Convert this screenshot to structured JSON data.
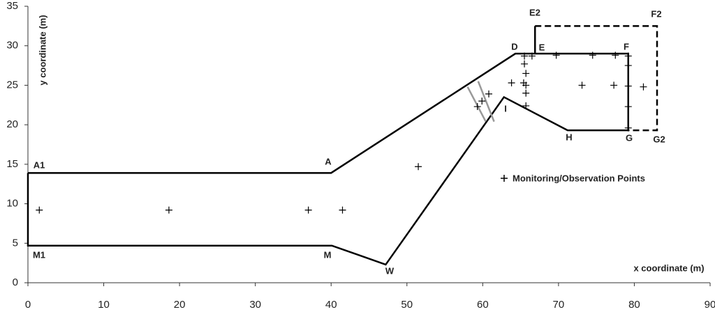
{
  "chart_data": {
    "type": "scatter",
    "x_label": "x coordinate (m)",
    "y_label": "y coordinate (m)",
    "xlim": [
      0,
      90
    ],
    "ylim": [
      0,
      35
    ],
    "xticks": [
      0,
      10,
      20,
      30,
      40,
      50,
      60,
      70,
      80,
      90
    ],
    "yticks": [
      0,
      5,
      10,
      15,
      20,
      25,
      30,
      35
    ],
    "lines": [
      {
        "style": "solid",
        "width": 2.5,
        "color": "#000000",
        "x": [
          0,
          40,
          64.3,
          79.2,
          79.2,
          71.2,
          62.8,
          47.2,
          40.1,
          0,
          0
        ],
        "y": [
          13.9,
          13.9,
          29.0,
          29.0,
          19.3,
          19.3,
          23.5,
          2.3,
          4.7,
          4.7,
          13.9
        ]
      },
      {
        "style": "solid",
        "width": 2.5,
        "color": "#000000",
        "x": [
          66.9,
          66.9
        ],
        "y": [
          32.5,
          29.0
        ]
      },
      {
        "style": "dashed",
        "width": 2.5,
        "color": "#000000",
        "x": [
          66.9,
          83.0,
          83.0,
          79.2
        ],
        "y": [
          32.5,
          32.5,
          19.3,
          19.3
        ]
      },
      {
        "style": "solid",
        "width": 2.5,
        "color": "#999999",
        "x": [
          58.0,
          60.4
        ],
        "y": [
          24.8,
          20.4
        ]
      },
      {
        "style": "solid",
        "width": 2.5,
        "color": "#999999",
        "x": [
          59.4,
          61.5
        ],
        "y": [
          25.5,
          20.4
        ]
      }
    ],
    "series": [
      {
        "name": "Monitoring/Observation Points",
        "color": "#000000",
        "marker": "+",
        "x": [
          1.5,
          18.6,
          37.0,
          41.5,
          51.5,
          59.3,
          59.9,
          60.8,
          63.8,
          65.4,
          65.7,
          65.7,
          65.7,
          65.7,
          65.5,
          65.5,
          66.5,
          69.7,
          74.5,
          77.5,
          73.1,
          77.3,
          79.2,
          79.2,
          79.2,
          79.2,
          79.2,
          81.2
        ],
        "y": [
          9.2,
          9.2,
          9.2,
          9.2,
          14.7,
          22.3,
          23.0,
          23.9,
          25.3,
          25.3,
          24.0,
          22.4,
          25.0,
          26.5,
          27.7,
          28.7,
          28.7,
          28.8,
          28.8,
          28.8,
          25.0,
          25.0,
          24.9,
          27.5,
          28.7,
          22.3,
          19.6,
          24.8
        ]
      }
    ],
    "point_labels": [
      "A1",
      "A",
      "D",
      "E",
      "F",
      "E2",
      "F2",
      "G2",
      "G",
      "H",
      "I",
      "W",
      "M",
      "M1"
    ]
  }
}
